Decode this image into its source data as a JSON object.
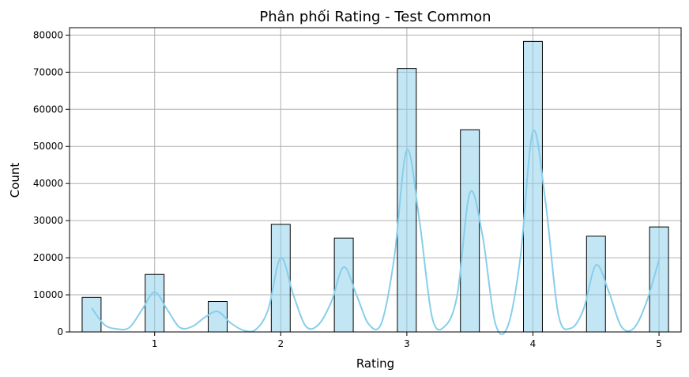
{
  "chart_data": {
    "type": "bar",
    "title": "Phân phối Rating - Test Common",
    "xlabel": "Rating",
    "ylabel": "Count",
    "xlim": [
      0.325,
      5.175
    ],
    "ylim": [
      0,
      82000
    ],
    "x_ticks": [
      1,
      2,
      3,
      4,
      5
    ],
    "y_ticks": [
      0,
      10000,
      20000,
      30000,
      40000,
      50000,
      60000,
      70000,
      80000
    ],
    "grid": true,
    "bin_width": 0.15,
    "bars": [
      {
        "x": 0.5,
        "value": 9300
      },
      {
        "x": 1.0,
        "value": 15500
      },
      {
        "x": 1.5,
        "value": 8200
      },
      {
        "x": 2.0,
        "value": 29000
      },
      {
        "x": 2.5,
        "value": 25300
      },
      {
        "x": 3.0,
        "value": 71000
      },
      {
        "x": 3.5,
        "value": 54500
      },
      {
        "x": 4.0,
        "value": 78300
      },
      {
        "x": 4.5,
        "value": 25800
      },
      {
        "x": 5.0,
        "value": 28300
      }
    ],
    "kde": {
      "x": [
        0.5,
        0.6,
        0.7,
        0.8,
        0.9,
        1.0,
        1.1,
        1.2,
        1.3,
        1.4,
        1.5,
        1.6,
        1.7,
        1.8,
        1.9,
        2.0,
        2.1,
        2.2,
        2.3,
        2.4,
        2.5,
        2.6,
        2.7,
        2.8,
        2.9,
        3.0,
        3.1,
        3.2,
        3.3,
        3.4,
        3.5,
        3.6,
        3.7,
        3.8,
        3.9,
        4.0,
        4.1,
        4.2,
        4.3,
        4.4,
        4.5,
        4.6,
        4.7,
        4.8,
        4.9,
        5.0
      ],
      "y": [
        6500,
        2000,
        800,
        1200,
        6000,
        10700,
        6000,
        1200,
        1500,
        4000,
        5500,
        2500,
        500,
        600,
        6000,
        20000,
        10000,
        1500,
        2000,
        8000,
        17500,
        10000,
        2000,
        2500,
        20000,
        49000,
        30000,
        4000,
        1500,
        10000,
        37500,
        26000,
        2500,
        1500,
        20000,
        54000,
        35000,
        5000,
        1000,
        6000,
        18000,
        11000,
        1500,
        1000,
        8000,
        19500
      ],
      "color": "#87ceeb"
    },
    "bar_color": "#87ceeb",
    "edge_color": "#000000"
  }
}
